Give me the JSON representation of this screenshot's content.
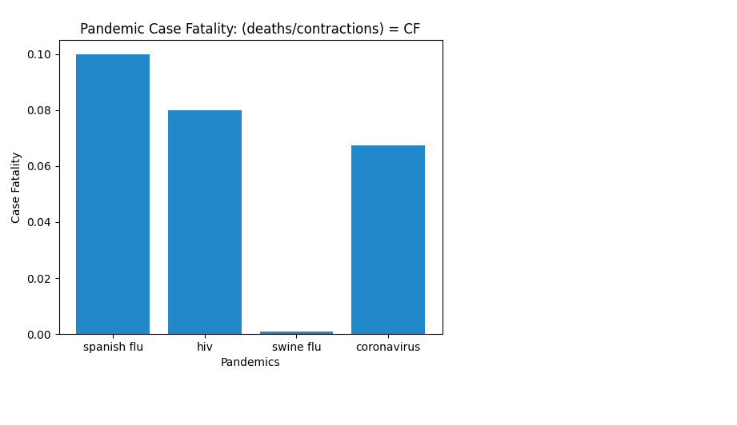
{
  "chart_data": {
    "type": "bar",
    "title": "Pandemic Case Fatality: (deaths/contractions) = CF",
    "x_label": "Pandemics",
    "y_label": "Case Fatality",
    "categories": [
      "spanish flu",
      "hiv",
      "swine flu",
      "coronavirus"
    ],
    "values": [
      0.1,
      0.08,
      0.001,
      0.0673
    ],
    "color": "#2188c9",
    "ylim": [
      0,
      0.105
    ],
    "yticks": [
      {
        "value": 0,
        "label": "0.00"
      },
      {
        "value": 0.02,
        "label": "0.02"
      },
      {
        "value": 0.04,
        "label": "0.04"
      },
      {
        "value": 0.06,
        "label": "0.06"
      },
      {
        "value": 0.08,
        "label": "0.08"
      },
      {
        "value": 0.1,
        "label": "0.10"
      }
    ],
    "grid": false
  }
}
